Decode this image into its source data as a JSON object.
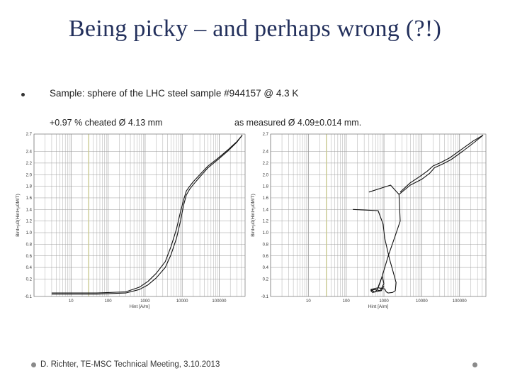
{
  "slide": {
    "title": "Being picky – and perhaps wrong (?!)",
    "bullet": "Sample: sphere of the LHC steel sample #944157 @ 4.3 K",
    "caption_left": "+0.97 % cheated Ø 4.13 mm",
    "caption_right": "as measured Ø 4.09±0.014 mm.",
    "footer": "D. Richter, TE-MSC Technical Meeting, 3.10.2013"
  },
  "colors": {
    "title": "#23305c",
    "curve": "#111111",
    "grid": "#999999",
    "marker_line": "#c8c890"
  },
  "chart_data": [
    {
      "type": "line",
      "xlabel": "Hint [A/m]",
      "ylabel": "Bint=µ0(Hint+µ0M/T)",
      "xscale": "log",
      "xlim": [
        1,
        500000
      ],
      "ylim": [
        -0.1,
        2.7
      ],
      "xticks": [
        "10",
        "100",
        "1000",
        "10000",
        "100000"
      ],
      "yticks": [
        "-0.1",
        "0.2",
        "0.4",
        "0.6",
        "0.8",
        "1.0",
        "1.2",
        "1.4",
        "1.6",
        "1.8",
        "2.0",
        "2.2",
        "2.4",
        "2.7"
      ],
      "vertical_marker": 30,
      "series": [
        {
          "x": [
            3,
            50,
            300,
            700,
            1200,
            2000,
            3500,
            5000,
            7000,
            9000,
            11000,
            13000,
            16000,
            20000,
            30000,
            50000,
            100000,
            180000,
            300000,
            420000
          ],
          "y": [
            -0.06,
            -0.06,
            -0.04,
            0.02,
            0.1,
            0.22,
            0.4,
            0.62,
            0.9,
            1.2,
            1.48,
            1.65,
            1.75,
            1.83,
            1.96,
            2.12,
            2.28,
            2.42,
            2.56,
            2.68
          ]
        },
        {
          "x": [
            3,
            50,
            300,
            700,
            1200,
            2000,
            3500,
            5000,
            7000,
            9000,
            11000,
            13000,
            16000,
            20000,
            30000,
            50000,
            100000,
            180000,
            300000,
            420000
          ],
          "y": [
            -0.04,
            -0.04,
            -0.02,
            0.06,
            0.16,
            0.3,
            0.5,
            0.76,
            1.06,
            1.36,
            1.57,
            1.72,
            1.8,
            1.88,
            2.0,
            2.15,
            2.3,
            2.44,
            2.57,
            2.68
          ]
        }
      ]
    },
    {
      "type": "line",
      "xlabel": "Hint [A/m]",
      "ylabel": "Bint=µ0(Hint+µ0M/T)",
      "xscale": "log",
      "xlim": [
        1,
        500000
      ],
      "ylim": [
        -0.1,
        2.7
      ],
      "xticks": [
        "10",
        "100",
        "1000",
        "10000",
        "100000"
      ],
      "yticks": [
        "-0.1",
        "0.2",
        "0.4",
        "0.6",
        "0.8",
        "1.0",
        "1.2",
        "1.4",
        "1.6",
        "1.8",
        "2.0",
        "2.2",
        "2.4",
        "2.7"
      ],
      "vertical_marker": 30,
      "series": [
        {
          "x": [
            400,
            1500,
            2500,
            2700,
            2000,
            1300,
            1000,
            800,
            700,
            600,
            500,
            450,
            550,
            800,
            1000,
            900,
            700
          ],
          "y": [
            1.7,
            1.82,
            1.66,
            1.2,
            0.95,
            0.6,
            0.35,
            0.15,
            0.05,
            -0.02,
            -0.03,
            0.0,
            0.02,
            0.0,
            0.12,
            0.25,
            0.06
          ]
        },
        {
          "x": [
            150,
            700,
            950,
            1050,
            1400,
            1800,
            2100,
            2000,
            1700,
            1300,
            1150,
            1050,
            700,
            450,
            550,
            850,
            1000
          ],
          "y": [
            1.4,
            1.38,
            1.15,
            0.9,
            0.55,
            0.3,
            0.14,
            0.0,
            -0.03,
            -0.04,
            -0.02,
            0.03,
            0.05,
            0.02,
            -0.02,
            0.0,
            0.08
          ]
        },
        {
          "x": [
            2500,
            5000,
            10000,
            16000,
            22000,
            35000,
            60000,
            120000,
            250000,
            420000
          ],
          "y": [
            1.66,
            1.82,
            1.92,
            2.02,
            2.12,
            2.18,
            2.26,
            2.4,
            2.56,
            2.68
          ]
        },
        {
          "x": [
            2700,
            5000,
            9000,
            14000,
            20000,
            32000,
            55000,
            110000,
            230000,
            420000
          ],
          "y": [
            1.7,
            1.86,
            1.97,
            2.06,
            2.15,
            2.21,
            2.29,
            2.43,
            2.58,
            2.68
          ]
        }
      ]
    }
  ]
}
